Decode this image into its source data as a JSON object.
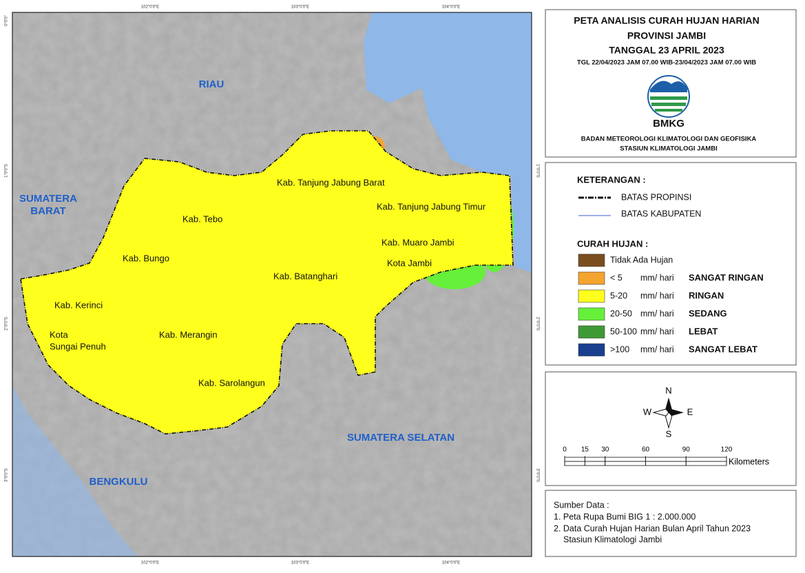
{
  "map": {
    "regions": {
      "riau": "RIAU",
      "sumbar": [
        "SUMATERA",
        "BARAT"
      ],
      "sumsel": "SUMATERA SELATAN",
      "bengkulu": "BENGKULU"
    },
    "districts": {
      "tanjabbar": "Kab. Tanjung Jabung Barat",
      "tanjabtim": "Kab. Tanjung Jabung Timur",
      "tebo": "Kab. Tebo",
      "muarojambi": "Kab. Muaro Jambi",
      "kotajambi": "Kota Jambi",
      "bungo": "Kab. Bungo",
      "batanghari": "Kab. Batanghari",
      "kerinci": "Kab. Kerinci",
      "sungaipenuh": [
        "Kota",
        "Sungai Penuh"
      ],
      "merangin": "Kab. Merangin",
      "sarolangun": "Kab. Sarolangun"
    },
    "lon_labels": [
      "102°0'0\"E",
      "103°0'0\"E",
      "104°0'0\"E"
    ],
    "lat_labels": [
      "0°0'0\"",
      "1°0'0\"S",
      "2°0'0\"S",
      "3°0'0\"S"
    ]
  },
  "header": {
    "title_lines": [
      "PETA ANALISIS CURAH HUJAN HARIAN",
      "PROVINSI JAMBI",
      "TANGGAL 23 APRIL 2023"
    ],
    "period": "TGL 22/04/2023 JAM 07.00 WIB-23/04/2023 JAM 07.00 WIB",
    "logo_text": "BMKG",
    "agency_lines": [
      "BADAN METEOROLOGI KLIMATOLOGI DAN GEOFISIKA",
      "STASIUN KLIMATOLOGI JAMBI"
    ]
  },
  "legend": {
    "title": "KETERANGAN :",
    "boundaries": [
      "BATAS PROPINSI",
      "BATAS KABUPATEN"
    ],
    "rain_title": "CURAH HUJAN :",
    "classes": [
      {
        "range": "Tidak Ada Hujan",
        "color": "#7a4e1e"
      },
      {
        "range": "< 5",
        "unit": "mm/ hari",
        "category": "SANGAT RINGAN",
        "color": "#f5a430"
      },
      {
        "range": "5-20",
        "unit": "mm/ hari",
        "category": "RINGAN",
        "color": "#ffff1e"
      },
      {
        "range": "20-50",
        "unit": "mm/ hari",
        "category": "SEDANG",
        "color": "#66f03a"
      },
      {
        "range": "50-100",
        "unit": "mm/ hari",
        "category": "LEBAT",
        "color": "#3f9a35"
      },
      {
        "range": ">100",
        "unit": "mm/ hari",
        "category": "SANGAT LEBAT",
        "color": "#1a3f8f"
      }
    ]
  },
  "compass": {
    "n": "N",
    "s": "S",
    "e": "E",
    "w": "W"
  },
  "scale_bar": {
    "ticks": [
      0,
      15,
      30,
      60,
      90,
      120
    ],
    "unit": "Kilometers"
  },
  "source": {
    "title": "Sumber Data :",
    "items": [
      "1. Peta Rupa Bumi BIG 1 : 2.000.000",
      "2. Data Curah Hujan Harian Bulan April Tahun 2023",
      "Stasiun Klimatologi Jambi"
    ]
  }
}
